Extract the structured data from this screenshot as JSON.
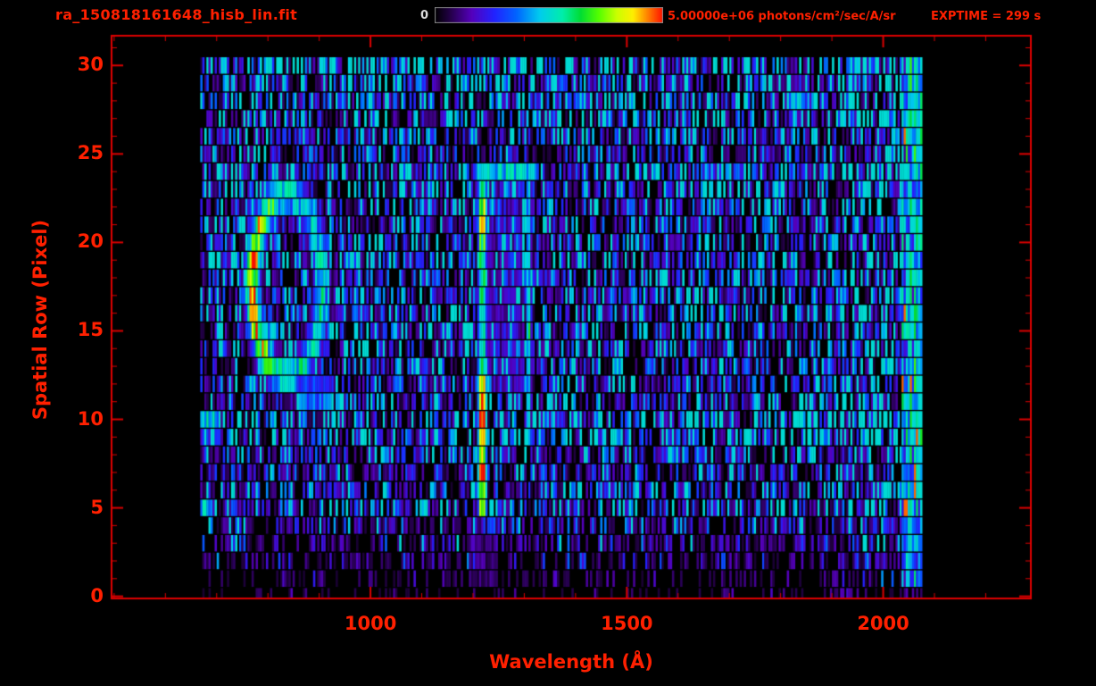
{
  "colors": {
    "text_red": "#ff2000",
    "axis_red": "#dd0000",
    "colorbar_min_label_color": "#dddddd",
    "background": "#000000"
  },
  "chart_data": {
    "type": "heatmap",
    "title": "ra_150818161648_hisb_lin.fit",
    "xlabel": "Wavelength (Å)",
    "ylabel": "Spatial Row (Pixel)",
    "xlim": [
      495,
      2288
    ],
    "ylim": [
      -0.12,
      31.68
    ],
    "xticks": [
      1000,
      1500,
      2000
    ],
    "x_minor_tick_interval": 100,
    "yticks": [
      0,
      5,
      10,
      15,
      20,
      25,
      30
    ],
    "y_minor_tick_interval": 1,
    "colorbar": {
      "min_label": "0",
      "max_label": "5.00000e+06 photons/cm²/sec/A/sr"
    },
    "exptime_label": "EXPTIME = 299 s",
    "value_range_photons": [
      0,
      5000000
    ],
    "data_extent": {
      "wavelength_min": 668,
      "wavelength_max": 2076,
      "row_min": 0,
      "row_max": 30
    },
    "row_background_profile": [
      0.04,
      0.06,
      0.1,
      0.13,
      0.2,
      0.34,
      0.26,
      0.22,
      0.27,
      0.46,
      0.44,
      0.3,
      0.26,
      0.28,
      0.3,
      0.3,
      0.31,
      0.31,
      0.31,
      0.33,
      0.31,
      0.3,
      0.31,
      0.32,
      0.4,
      0.26,
      0.3,
      0.32,
      0.38,
      0.33,
      0.5
    ],
    "features": [
      {
        "name": "airglow-ring",
        "type": "ring",
        "wavelength_center": 835,
        "row_center": 17.6,
        "rx": 68,
        "ry": 5.1,
        "thickness": 0.15,
        "amp_left": 0.88,
        "amp_right": 0.5
      },
      {
        "name": "ring-tail",
        "type": "hseg",
        "x0": 860,
        "x1": 925,
        "row": 11.3,
        "sy": 1.0,
        "amp": 0.38
      },
      {
        "name": "lyman-alpha-emission-line",
        "type": "vline",
        "wavelength": 1216,
        "half_width": 11,
        "row_min": 4.8,
        "row_max": 24.2,
        "amp": 0.58,
        "hotspots": [
          {
            "row": 7.0,
            "amp": 0.35
          },
          {
            "row": 9.6,
            "amp": 0.38
          },
          {
            "row": 11.3,
            "amp": 0.28
          },
          {
            "row": 21.3,
            "amp": 0.3
          },
          {
            "row": 5.2,
            "amp": 0.15
          }
        ]
      },
      {
        "name": "secondary-emission-line",
        "type": "vline",
        "wavelength": 1307,
        "half_width": 6.5,
        "row_min": 8.4,
        "row_max": 24.2,
        "amp": 0.44,
        "hotspots": [
          {
            "row": 15,
            "amp": 0.1
          }
        ]
      },
      {
        "name": "interline-glow",
        "type": "band",
        "x0": 1228,
        "x1": 1298,
        "row_min": 11.5,
        "row_max": 24.2,
        "amp": 0.17
      },
      {
        "name": "line-top-bridge",
        "type": "hseg",
        "x0": 1210,
        "x1": 1315,
        "row": 24.0,
        "sy": 0.5,
        "amp": 0.45
      },
      {
        "name": "green-blob",
        "type": "blob",
        "wavelength": 1832,
        "row": 28.0,
        "sx": 20,
        "sy": 0.9,
        "amp": 0.55
      },
      {
        "name": "left-edge-cyan-segment-a",
        "type": "hseg",
        "x0": 666,
        "x1": 703,
        "row": 9.7,
        "sy": 0.8,
        "amp": 0.52
      },
      {
        "name": "left-edge-cyan-segment-b",
        "type": "hseg",
        "x0": 666,
        "x1": 690,
        "row": 5.1,
        "sy": 0.6,
        "amp": 0.44
      },
      {
        "name": "red-edge-bright-band",
        "type": "band",
        "x0": 2034,
        "x1": 2076,
        "row_min": 1,
        "row_max": 30,
        "amp": 0.42,
        "column_variation": 0.5,
        "spike_prob": 0.02,
        "spike_amp": 0.95
      },
      {
        "name": "sub-line-specks",
        "type": "band",
        "x0": 1192,
        "x1": 1246,
        "row_min": 1,
        "row_max": 4,
        "amp": 0.1
      }
    ],
    "colormap_stops": [
      [
        0.0,
        "#000000"
      ],
      [
        0.06,
        "#200040"
      ],
      [
        0.16,
        "#5500bb"
      ],
      [
        0.26,
        "#2222ff"
      ],
      [
        0.36,
        "#0066ff"
      ],
      [
        0.46,
        "#00ccee"
      ],
      [
        0.56,
        "#00eeaa"
      ],
      [
        0.64,
        "#00dd33"
      ],
      [
        0.72,
        "#55ff00"
      ],
      [
        0.8,
        "#ccff00"
      ],
      [
        0.87,
        "#ffee00"
      ],
      [
        0.93,
        "#ff8800"
      ],
      [
        1.0,
        "#ff1100"
      ]
    ]
  }
}
